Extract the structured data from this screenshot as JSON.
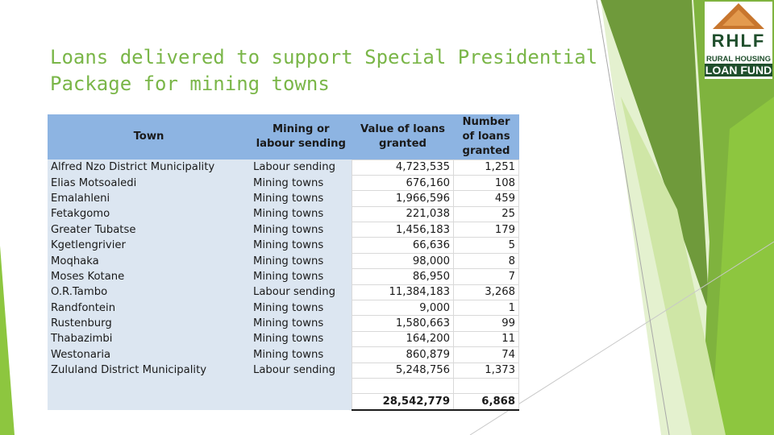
{
  "slide": {
    "title_line1": "Loans delivered to support Special Presidential",
    "title_line2": "Package for mining towns"
  },
  "logo": {
    "main": "RHLF",
    "sub1": "RURAL HOUSING",
    "sub2": "LOAN FUND"
  },
  "table": {
    "headers": {
      "town": "Town",
      "sending_1": "Mining or",
      "sending_2": "labour sending",
      "value_1": "Value of loans",
      "value_2": "granted",
      "number_1": "Number",
      "number_2": "of loans",
      "number_3": "granted"
    },
    "rows": [
      {
        "town": "Alfred Nzo District Municipality",
        "type": "Labour sending",
        "value": "4,723,535",
        "count": "1,251"
      },
      {
        "town": "Elias Motsoaledi",
        "type": "Mining towns",
        "value": "676,160",
        "count": "108"
      },
      {
        "town": "Emalahleni",
        "type": "Mining towns",
        "value": "1,966,596",
        "count": "459"
      },
      {
        "town": "Fetakgomo",
        "type": "Mining towns",
        "value": "221,038",
        "count": "25"
      },
      {
        "town": "Greater Tubatse",
        "type": "Mining towns",
        "value": "1,456,183",
        "count": "179"
      },
      {
        "town": "Kgetlengrivier",
        "type": "Mining towns",
        "value": "66,636",
        "count": "5"
      },
      {
        "town": "Moqhaka",
        "type": "Mining towns",
        "value": "98,000",
        "count": "8"
      },
      {
        "town": "Moses Kotane",
        "type": "Mining towns",
        "value": "86,950",
        "count": "7"
      },
      {
        "town": "O.R.Tambo",
        "type": "Labour sending",
        "value": "11,384,183",
        "count": "3,268"
      },
      {
        "town": "Randfontein",
        "type": "Mining towns",
        "value": "9,000",
        "count": "1"
      },
      {
        "town": "Rustenburg",
        "type": "Mining towns",
        "value": "1,580,663",
        "count": "99"
      },
      {
        "town": "Thabazimbi",
        "type": "Mining towns",
        "value": "164,200",
        "count": "11"
      },
      {
        "town": "Westonaria",
        "type": "Mining towns",
        "value": "860,879",
        "count": "74"
      },
      {
        "town": "Zululand District Municipality",
        "type": "Labour sending",
        "value": "5,248,756",
        "count": "1,373"
      }
    ],
    "total": {
      "value": "28,542,779",
      "count": "6,868"
    }
  }
}
